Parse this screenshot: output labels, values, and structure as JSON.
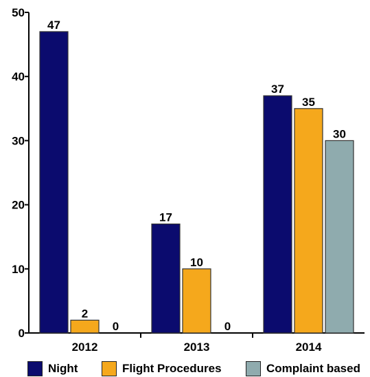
{
  "chart_data": {
    "type": "bar",
    "categories": [
      "2012",
      "2013",
      "2014"
    ],
    "series": [
      {
        "name": "Night",
        "color": "#0b0b6e",
        "values": [
          47,
          17,
          37
        ]
      },
      {
        "name": "Flight Procedures",
        "color": "#f5a81c",
        "values": [
          2,
          10,
          35
        ]
      },
      {
        "name": "Complaint based",
        "color": "#8fabae",
        "values": [
          0,
          0,
          30
        ]
      }
    ],
    "ylim": [
      0,
      50
    ],
    "yticks": [
      "0",
      "10",
      "20",
      "30",
      "40",
      "50"
    ],
    "grid": false,
    "legend_position": "bottom"
  }
}
